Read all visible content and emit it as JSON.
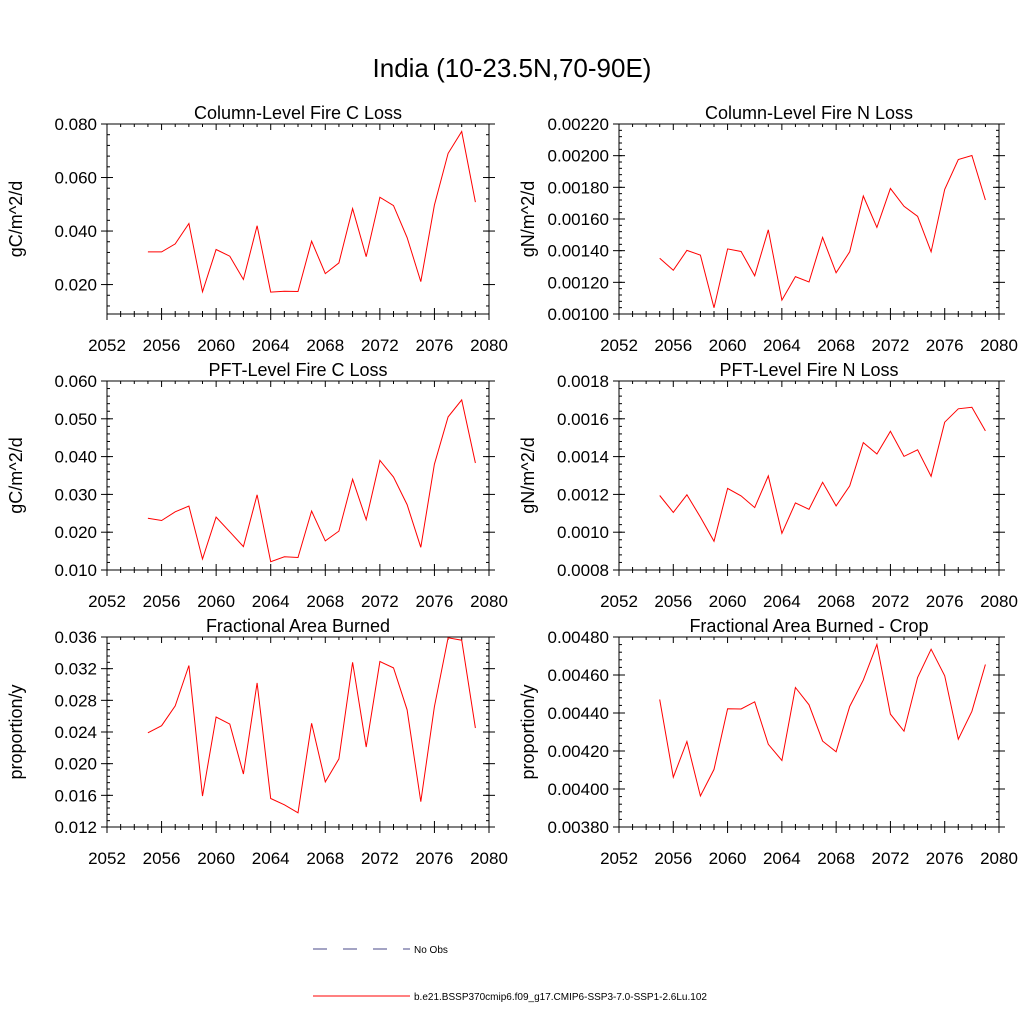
{
  "title": "India (10-23.5N,70-90E)",
  "colors": {
    "series": "#ff0000",
    "obs": "#4a4a8a",
    "axis": "#000000"
  },
  "chart_data": [
    {
      "type": "line",
      "title": "Column-Level Fire C Loss",
      "ylabel": "gC/m^2/d",
      "xlim": [
        2052,
        2080
      ],
      "ylim": [
        0.009,
        0.08
      ],
      "xticks": [
        "2052",
        "2056",
        "2060",
        "2064",
        "2068",
        "2072",
        "2076",
        "2080"
      ],
      "yticks": [
        0.02,
        0.04,
        0.06,
        0.08
      ],
      "ytick_labels": [
        "0.020",
        "0.040",
        "0.060",
        "0.080"
      ],
      "x": [
        2055,
        2056,
        2057,
        2058,
        2059,
        2060,
        2061,
        2062,
        2063,
        2064,
        2065,
        2066,
        2067,
        2068,
        2069,
        2070,
        2071,
        2072,
        2073,
        2074,
        2075,
        2076,
        2077,
        2078,
        2079
      ],
      "y": [
        0.0322,
        0.0322,
        0.0352,
        0.0428,
        0.0173,
        0.0331,
        0.0306,
        0.0219,
        0.042,
        0.0172,
        0.0175,
        0.0174,
        0.0362,
        0.0241,
        0.0281,
        0.0484,
        0.0304,
        0.0526,
        0.0495,
        0.0376,
        0.0211,
        0.0497,
        0.069,
        0.0772,
        0.0508
      ]
    },
    {
      "type": "line",
      "title": "Column-Level Fire N Loss",
      "ylabel": "gN/m^2/d",
      "xlim": [
        2052,
        2080
      ],
      "ylim": [
        0.001,
        0.0022
      ],
      "xticks": [
        "2052",
        "2056",
        "2060",
        "2064",
        "2068",
        "2072",
        "2076",
        "2080"
      ],
      "yticks": [
        0.001,
        0.0012,
        0.0014,
        0.0016,
        0.0018,
        0.002,
        0.0022
      ],
      "ytick_labels": [
        "0.00100",
        "0.00120",
        "0.00140",
        "0.00160",
        "0.00180",
        "0.00200",
        "0.00220"
      ],
      "x": [
        2055,
        2056,
        2057,
        2058,
        2059,
        2060,
        2061,
        2062,
        2063,
        2064,
        2065,
        2066,
        2067,
        2068,
        2069,
        2070,
        2071,
        2072,
        2073,
        2074,
        2075,
        2076,
        2077,
        2078,
        2079
      ],
      "y": [
        0.001352,
        0.001276,
        0.001402,
        0.001372,
        0.001039,
        0.001411,
        0.001395,
        0.001241,
        0.001532,
        0.001088,
        0.001236,
        0.001202,
        0.001484,
        0.00126,
        0.001393,
        0.001745,
        0.001547,
        0.001793,
        0.00168,
        0.001617,
        0.001393,
        0.001787,
        0.001976,
        0.002001,
        0.00172
      ]
    },
    {
      "type": "line",
      "title": "PFT-Level Fire C Loss",
      "ylabel": "gC/m^2/d",
      "xlim": [
        2052,
        2080
      ],
      "ylim": [
        0.01,
        0.06
      ],
      "xticks": [
        "2052",
        "2056",
        "2060",
        "2064",
        "2068",
        "2072",
        "2076",
        "2080"
      ],
      "yticks": [
        0.01,
        0.02,
        0.03,
        0.04,
        0.05,
        0.06
      ],
      "ytick_labels": [
        "0.010",
        "0.020",
        "0.030",
        "0.040",
        "0.050",
        "0.060"
      ],
      "x": [
        2055,
        2056,
        2057,
        2058,
        2059,
        2060,
        2061,
        2062,
        2063,
        2064,
        2065,
        2066,
        2067,
        2068,
        2069,
        2070,
        2071,
        2072,
        2073,
        2074,
        2075,
        2076,
        2077,
        2078,
        2079
      ],
      "y": [
        0.0237,
        0.0231,
        0.0254,
        0.0269,
        0.0129,
        0.024,
        0.0201,
        0.0162,
        0.0299,
        0.0122,
        0.0135,
        0.0133,
        0.0256,
        0.0177,
        0.0203,
        0.034,
        0.0233,
        0.039,
        0.0346,
        0.0273,
        0.016,
        0.038,
        0.0505,
        0.055,
        0.0383
      ]
    },
    {
      "type": "line",
      "title": "PFT-Level Fire N Loss",
      "ylabel": "gN/m^2/d",
      "xlim": [
        2052,
        2080
      ],
      "ylim": [
        0.0008,
        0.0018
      ],
      "xticks": [
        "2052",
        "2056",
        "2060",
        "2064",
        "2068",
        "2072",
        "2076",
        "2080"
      ],
      "yticks": [
        0.0008,
        0.001,
        0.0012,
        0.0014,
        0.0016,
        0.0018
      ],
      "ytick_labels": [
        "0.0008",
        "0.0010",
        "0.0012",
        "0.0014",
        "0.0016",
        "0.0018"
      ],
      "x": [
        2055,
        2056,
        2057,
        2058,
        2059,
        2060,
        2061,
        2062,
        2063,
        2064,
        2065,
        2066,
        2067,
        2068,
        2069,
        2070,
        2071,
        2072,
        2073,
        2074,
        2075,
        2076,
        2077,
        2078,
        2079
      ],
      "y": [
        0.001194,
        0.001105,
        0.001198,
        0.00108,
        0.000952,
        0.001232,
        0.001192,
        0.00113,
        0.001298,
        0.000994,
        0.001155,
        0.001121,
        0.001264,
        0.001139,
        0.001245,
        0.001474,
        0.001414,
        0.001534,
        0.001401,
        0.001436,
        0.001296,
        0.001582,
        0.001653,
        0.001661,
        0.001536
      ]
    },
    {
      "type": "line",
      "title": "Fractional Area Burned",
      "ylabel": "proportion/y",
      "xlim": [
        2052,
        2080
      ],
      "ylim": [
        0.012,
        0.036
      ],
      "xticks": [
        "2052",
        "2056",
        "2060",
        "2064",
        "2068",
        "2072",
        "2076",
        "2080"
      ],
      "yticks": [
        0.012,
        0.016,
        0.02,
        0.024,
        0.028,
        0.032,
        0.036
      ],
      "ytick_labels": [
        "0.012",
        "0.016",
        "0.020",
        "0.024",
        "0.028",
        "0.032",
        "0.036"
      ],
      "x": [
        2055,
        2056,
        2057,
        2058,
        2059,
        2060,
        2061,
        2062,
        2063,
        2064,
        2065,
        2066,
        2067,
        2068,
        2069,
        2070,
        2071,
        2072,
        2073,
        2074,
        2075,
        2076,
        2077,
        2078,
        2079
      ],
      "y": [
        0.0239,
        0.0248,
        0.0273,
        0.0324,
        0.0159,
        0.0259,
        0.025,
        0.0187,
        0.0302,
        0.0156,
        0.0148,
        0.0138,
        0.0251,
        0.0177,
        0.0206,
        0.0328,
        0.0221,
        0.0329,
        0.0321,
        0.0268,
        0.0152,
        0.0272,
        0.0359,
        0.0356,
        0.0245
      ]
    },
    {
      "type": "line",
      "title": "Fractional Area Burned - Crop",
      "ylabel": "proportion/y",
      "xlim": [
        2052,
        2080
      ],
      "ylim": [
        0.0038,
        0.0048
      ],
      "xticks": [
        "2052",
        "2056",
        "2060",
        "2064",
        "2068",
        "2072",
        "2076",
        "2080"
      ],
      "yticks": [
        0.0038,
        0.004,
        0.0042,
        0.0044,
        0.0046,
        0.0048
      ],
      "ytick_labels": [
        "0.00380",
        "0.00400",
        "0.00420",
        "0.00440",
        "0.00460",
        "0.00480"
      ],
      "x": [
        2055,
        2056,
        2057,
        2058,
        2059,
        2060,
        2061,
        2062,
        2063,
        2064,
        2065,
        2066,
        2067,
        2068,
        2069,
        2070,
        2071,
        2072,
        2073,
        2074,
        2075,
        2076,
        2077,
        2078,
        2079
      ],
      "y": [
        0.004471,
        0.004062,
        0.00425,
        0.003963,
        0.004103,
        0.004422,
        0.004421,
        0.004459,
        0.004235,
        0.00415,
        0.004534,
        0.004443,
        0.004252,
        0.004196,
        0.004434,
        0.004573,
        0.004761,
        0.004394,
        0.004304,
        0.004587,
        0.004736,
        0.004596,
        0.004262,
        0.004409,
        0.004655
      ]
    }
  ],
  "legend": [
    {
      "label": "No Obs",
      "style": "dashed",
      "color": "#4a4a8a"
    },
    {
      "label": "b.e21.BSSP370cmip6.f09_g17.CMIP6-SSP3-7.0-SSP1-2.6Lu.102",
      "style": "solid",
      "color": "#ff0000"
    }
  ]
}
